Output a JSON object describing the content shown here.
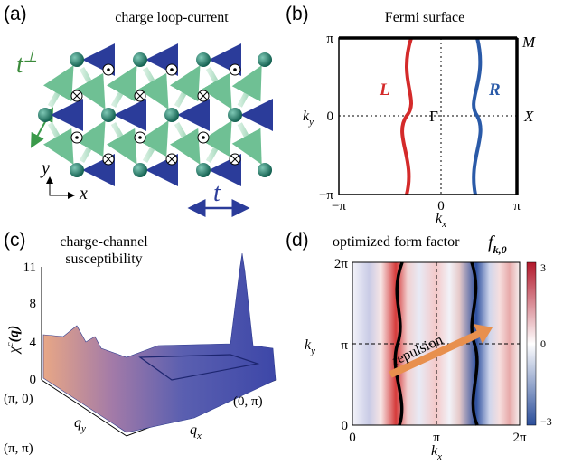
{
  "panel_a": {
    "label": "(a)",
    "title": "charge loop-current",
    "hopping_perp": {
      "main": "t",
      "sup": "⊥"
    },
    "hopping": "t",
    "axis_y": "y",
    "axis_x": "x"
  },
  "panel_b": {
    "label": "(b)",
    "title": "Fermi surface",
    "y_ticks": [
      "π",
      "0",
      "−π"
    ],
    "x_ticks": [
      "−π",
      "0",
      "π"
    ],
    "y_label": {
      "main": "k",
      "sub": "y"
    },
    "x_label": {
      "main": "k",
      "sub": "x"
    },
    "points": [
      "M",
      "X",
      "Γ"
    ],
    "curves": [
      "L",
      "R"
    ]
  },
  "panel_c": {
    "label": "(c)",
    "title": [
      "charge-channel",
      "susceptibility"
    ],
    "z_ticks": [
      "11",
      "8",
      "4",
      "0"
    ],
    "z_label": {
      "main": "χ",
      "sup": "c",
      "arg": "(q)"
    },
    "corners": [
      "(π, 0)",
      "(π, π)",
      "(0, π)"
    ],
    "y_label": {
      "main": "q",
      "sub": "y"
    },
    "x_label": {
      "main": "q",
      "sub": "x"
    }
  },
  "panel_d": {
    "label": "(d)",
    "title": "optimized form factor",
    "factor": {
      "main": "f",
      "sub": "k,0"
    },
    "y_ticks": [
      "2π",
      "π",
      "0"
    ],
    "x_ticks": [
      "0",
      "π",
      "2π"
    ],
    "colorbar_ticks": [
      "3",
      "0",
      "−3"
    ],
    "y_label": {
      "main": "k",
      "sub": "y"
    },
    "x_label": {
      "main": "k",
      "sub": "x"
    },
    "annotation": "repulsion"
  }
}
